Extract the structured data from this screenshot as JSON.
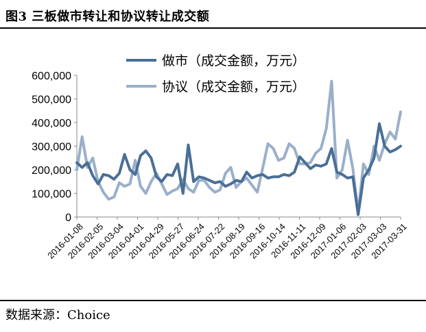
{
  "figure": {
    "title": "图3  三板做市转让和协议转让成交额",
    "source": "数据来源：Choice"
  },
  "chart_data": {
    "type": "line",
    "y_ticks": [
      "0",
      "100,000",
      "200,000",
      "300,000",
      "400,000",
      "500,000",
      "600,000"
    ],
    "ylim": [
      0,
      600000
    ],
    "x_tick_labels": [
      "2016-01-08",
      "2016-02-05",
      "2016-03-04",
      "2016-04-01",
      "2016-04-29",
      "2016-05-27",
      "2016-06-24",
      "2016-07-22",
      "2016-08-19",
      "2016-09-16",
      "2016-10-14",
      "2016-11-11",
      "2016-12-09",
      "2017-01-06",
      "2017-02-03",
      "2017-03-03",
      "2017-03-31"
    ],
    "legend_position": "top",
    "series": [
      {
        "name": "做市（成交金额，万元）",
        "color": "#4a6e96",
        "values": [
          230000,
          210000,
          230000,
          175000,
          140000,
          180000,
          175000,
          160000,
          185000,
          265000,
          200000,
          180000,
          260000,
          280000,
          250000,
          170000,
          150000,
          180000,
          175000,
          225000,
          100000,
          305000,
          150000,
          170000,
          165000,
          155000,
          145000,
          150000,
          130000,
          140000,
          155000,
          150000,
          190000,
          165000,
          175000,
          180000,
          165000,
          170000,
          170000,
          180000,
          175000,
          190000,
          255000,
          230000,
          205000,
          220000,
          215000,
          225000,
          290000,
          190000,
          180000,
          165000,
          170000,
          10000,
          165000,
          200000,
          250000,
          395000,
          300000,
          275000,
          285000,
          300000
        ]
      },
      {
        "name": "协议（成交金额，万元）",
        "color": "#9aafca",
        "values": [
          200000,
          340000,
          210000,
          250000,
          150000,
          105000,
          75000,
          85000,
          145000,
          130000,
          140000,
          240000,
          130000,
          100000,
          150000,
          185000,
          140000,
          95000,
          110000,
          120000,
          160000,
          120000,
          105000,
          155000,
          155000,
          125000,
          105000,
          115000,
          185000,
          210000,
          125000,
          150000,
          165000,
          135000,
          105000,
          205000,
          310000,
          290000,
          240000,
          250000,
          310000,
          290000,
          225000,
          225000,
          230000,
          270000,
          290000,
          375000,
          575000,
          165000,
          200000,
          325000,
          205000,
          20000,
          225000,
          180000,
          300000,
          240000,
          310000,
          360000,
          330000,
          445000
        ]
      }
    ]
  }
}
